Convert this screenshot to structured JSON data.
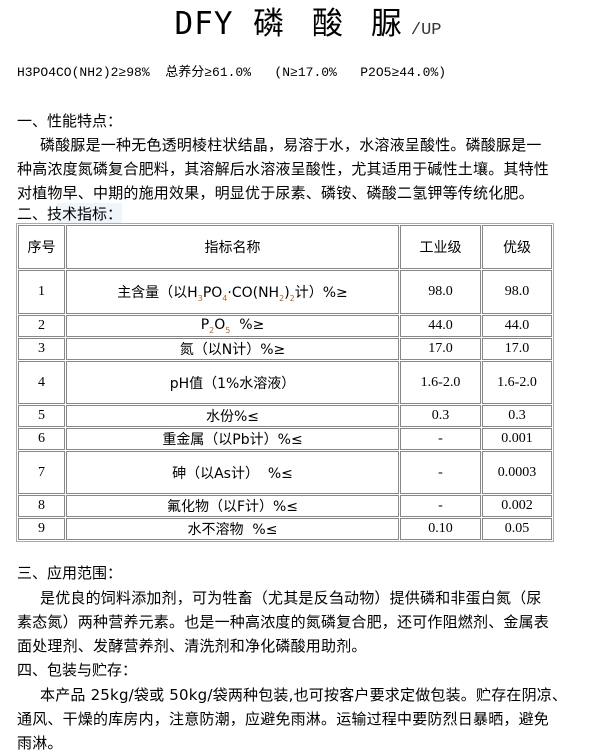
{
  "title": {
    "latin": "DFY",
    "chinese": "磷 酸 脲",
    "suffix": "/UP"
  },
  "formula_line": "H3PO4CO(NH2)2≥98%  总养分≥61.0%   (N≥17.0%   P2O5≥44.0%)",
  "section1": {
    "heading": "一、性能特点：",
    "lines": [
      "磷酸脲是一种无色透明棱柱状结晶，易溶于水，水溶液呈酸性。磷酸脲是一",
      "种高浓度氮磷复合肥料，其溶解后水溶液呈酸性，尤其适用于碱性土壤。其特性",
      "对植物早、中期的施用效果，明显优于尿素、磷铵、磷酸二氢钾等传统化肥。"
    ]
  },
  "section2": {
    "heading": "二、技术指标："
  },
  "table": {
    "headers": [
      "序号",
      "指标名称",
      "工业级",
      "优级"
    ],
    "rows": [
      {
        "no": "1",
        "name": [
          {
            "t": "主含量（以H"
          },
          {
            "sub": "3"
          },
          {
            "t": "PO"
          },
          {
            "sub": "4"
          },
          {
            "t": "·CO(NH"
          },
          {
            "sub": "2"
          },
          {
            "t": ")"
          },
          {
            "sub": "2"
          },
          {
            "t": "计）%≥"
          }
        ],
        "industrial": "98.0",
        "premium": "98.0"
      },
      {
        "no": "2",
        "name": [
          {
            "t": "P"
          },
          {
            "sub": "2"
          },
          {
            "t": "O"
          },
          {
            "sub": "5"
          },
          {
            "t": "  %≥"
          }
        ],
        "industrial": "44.0",
        "premium": "44.0"
      },
      {
        "no": "3",
        "name": [
          {
            "t": "氮（以N计）%≥"
          }
        ],
        "industrial": "17.0",
        "premium": "17.0"
      },
      {
        "no": "4",
        "name": [
          {
            "t": "pH值（1%水溶液）"
          }
        ],
        "industrial": "1.6-2.0",
        "premium": "1.6-2.0"
      },
      {
        "no": "5",
        "name": [
          {
            "t": "水份%≤"
          }
        ],
        "industrial": "0.3",
        "premium": "0.3"
      },
      {
        "no": "6",
        "name": [
          {
            "t": "重金属（以Pb计）%≤"
          }
        ],
        "industrial": "-",
        "premium": "0.001"
      },
      {
        "no": "7",
        "name": [
          {
            "t": "砷（以As计）  %≤"
          }
        ],
        "industrial": "-",
        "premium": "0.0003"
      },
      {
        "no": "8",
        "name": [
          {
            "t": "氟化物（以F计）%≤"
          }
        ],
        "industrial": "-",
        "premium": "0.002"
      },
      {
        "no": "9",
        "name": [
          {
            "t": "水不溶物  %≤"
          }
        ],
        "industrial": "0.10",
        "premium": "0.05"
      }
    ]
  },
  "section3": {
    "heading": "三、应用范围：",
    "lines": [
      "是优良的饲料添加剂，可为牲畜（尤其是反刍动物）提供磷和非蛋白氮（尿",
      "素态氮）两种营养元素。也是一种高浓度的氮磷复合肥，还可作阻燃剂、金属表",
      "面处理剂、发酵营养剂、清洗剂和净化磷酸用助剂。"
    ]
  },
  "section4": {
    "heading": "四、包装与贮存：",
    "lines": [
      "本产品 25kg/袋或 50kg/袋两种包装,也可按客户要求定做包装。贮存在阴凉、",
      "通风、干燥的库房内，注意防潮，应避免雨淋。运输过程中要防烈日暴晒，避免",
      "雨淋。"
    ]
  }
}
